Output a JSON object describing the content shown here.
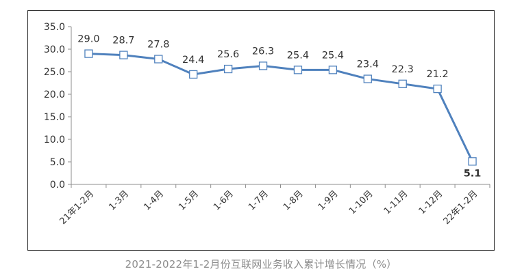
{
  "caption": "2021-2022年1-2月份互联网业务收入累计增长情况（%）",
  "chart_data": {
    "type": "line",
    "title": "",
    "xlabel": "",
    "ylabel": "",
    "ylim": [
      0,
      35
    ],
    "yticks": [
      "0.0",
      "5.0",
      "10.0",
      "15.0",
      "20.0",
      "25.0",
      "30.0",
      "35.0"
    ],
    "grid": false,
    "categories": [
      "21年1-2月",
      "1-3月",
      "1-4月",
      "1-5月",
      "1-6月",
      "1-7月",
      "1-8月",
      "1-9月",
      "1-10月",
      "1-11月",
      "1-12月",
      "22年1-2月"
    ],
    "series": [
      {
        "values": [
          29.0,
          28.7,
          27.8,
          24.4,
          25.6,
          26.3,
          25.4,
          25.4,
          23.4,
          22.3,
          21.2,
          5.1
        ],
        "labels": [
          "29.0",
          "28.7",
          "27.8",
          "24.4",
          "25.6",
          "26.3",
          "25.4",
          "25.4",
          "23.4",
          "22.3",
          "21.2",
          "5.1"
        ],
        "color": "#4f81bd"
      }
    ]
  }
}
